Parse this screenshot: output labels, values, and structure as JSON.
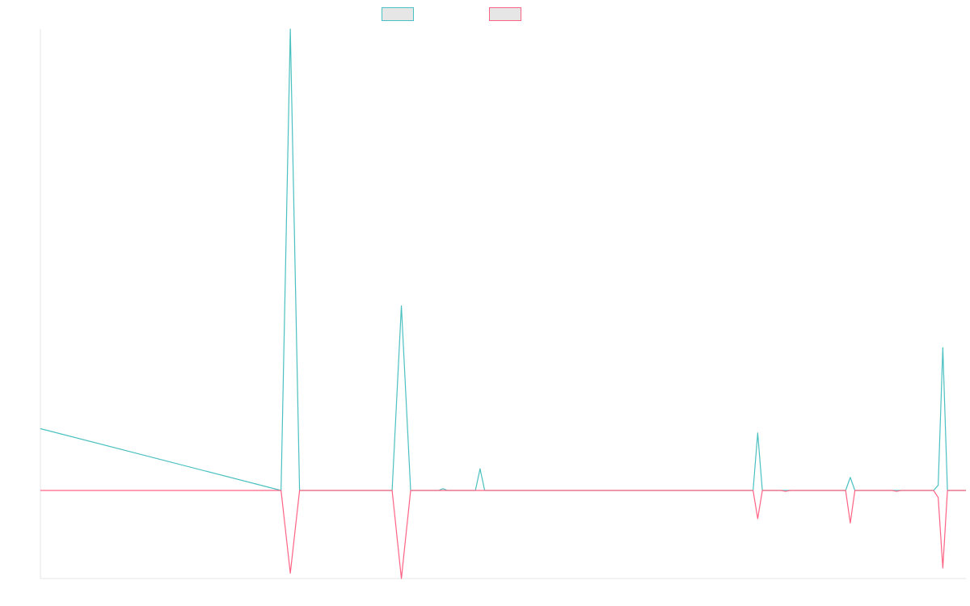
{
  "chart_data": {
    "type": "line",
    "title": "",
    "xlabel": "",
    "ylabel": "",
    "grid": false,
    "legend_position": "top-center",
    "ylim": [
      -100,
      530
    ],
    "x_count": 100,
    "series": [
      {
        "color": "#4bc0c0",
        "fill": "#e6e6e6",
        "points": [
          [
            0,
            71
          ],
          [
            26,
            0
          ],
          [
            27,
            530
          ],
          [
            28,
            0
          ],
          [
            38,
            0
          ],
          [
            39,
            212
          ],
          [
            40,
            0
          ],
          [
            43,
            0
          ],
          [
            43.5,
            2
          ],
          [
            44,
            0
          ],
          [
            47,
            0
          ],
          [
            47.5,
            25
          ],
          [
            48,
            0
          ],
          [
            77,
            0
          ],
          [
            77.5,
            66
          ],
          [
            78,
            0
          ],
          [
            80,
            0
          ],
          [
            80.5,
            0
          ],
          [
            81,
            0
          ],
          [
            87,
            0
          ],
          [
            87.5,
            15
          ],
          [
            88,
            0
          ],
          [
            92,
            0
          ],
          [
            92.5,
            0
          ],
          [
            93,
            0
          ],
          [
            96.5,
            0
          ],
          [
            97,
            6
          ],
          [
            97.5,
            164
          ],
          [
            98,
            0
          ],
          [
            100,
            0
          ]
        ]
      },
      {
        "color": "#ff6384",
        "fill": "#e6e6e6",
        "points": [
          [
            0,
            0
          ],
          [
            26,
            0
          ],
          [
            27,
            -94
          ],
          [
            28,
            0
          ],
          [
            38,
            0
          ],
          [
            39,
            -100
          ],
          [
            40,
            0
          ],
          [
            43,
            0
          ],
          [
            43.5,
            0
          ],
          [
            44,
            0
          ],
          [
            77,
            0
          ],
          [
            77.5,
            -32
          ],
          [
            78,
            0
          ],
          [
            80,
            0
          ],
          [
            80.5,
            -1
          ],
          [
            81,
            0
          ],
          [
            87,
            0
          ],
          [
            87.5,
            -37
          ],
          [
            88,
            0
          ],
          [
            92,
            0
          ],
          [
            92.5,
            -1
          ],
          [
            93,
            0
          ],
          [
            96.5,
            0
          ],
          [
            97,
            -8
          ],
          [
            97.5,
            -88
          ],
          [
            98,
            0
          ],
          [
            100,
            0
          ]
        ]
      }
    ]
  }
}
